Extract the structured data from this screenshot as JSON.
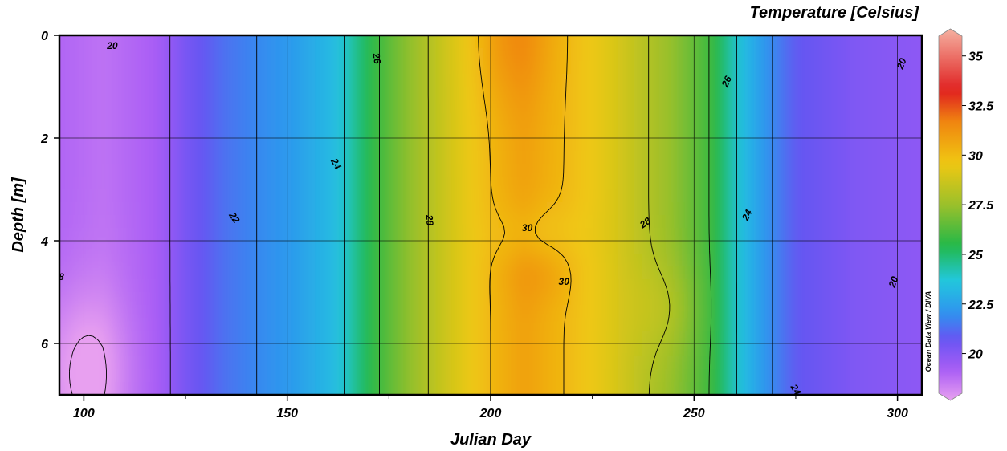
{
  "chart_data": {
    "type": "heatmap",
    "title": "",
    "xlabel": "Julian Day",
    "ylabel": "Depth [m]",
    "xlim": [
      94,
      306
    ],
    "ylim": [
      0,
      7
    ],
    "y_inverted": true,
    "x_ticks": [
      100,
      150,
      200,
      250,
      300
    ],
    "y_ticks": [
      0,
      2,
      4,
      6
    ],
    "grid": true,
    "colorbar": {
      "title": "Temperature [Celsius]",
      "range": [
        18,
        36
      ],
      "ticks": [
        20,
        22.5,
        25,
        27.5,
        30,
        32.5,
        35
      ],
      "tick_labels": [
        "20",
        "22.5",
        "25",
        "27.5",
        "30",
        "32.5",
        "35"
      ],
      "colors": [
        {
          "value": 18,
          "color": "#e8a0f0"
        },
        {
          "value": 19.5,
          "color": "#a85cf5"
        },
        {
          "value": 21,
          "color": "#6655f2"
        },
        {
          "value": 22.2,
          "color": "#2f92ef"
        },
        {
          "value": 23.8,
          "color": "#22c7de"
        },
        {
          "value": 25.5,
          "color": "#22b848"
        },
        {
          "value": 27.5,
          "color": "#9cc02a"
        },
        {
          "value": 29.5,
          "color": "#f0c812"
        },
        {
          "value": 31.5,
          "color": "#f08510"
        },
        {
          "value": 33,
          "color": "#e02020"
        },
        {
          "value": 36,
          "color": "#f5b0a0"
        }
      ]
    },
    "contour_labels": [
      {
        "text": "20",
        "x": 107,
        "y": 0.2,
        "angle": 0
      },
      {
        "text": "20",
        "x": 301,
        "y": 0.55,
        "angle": -70
      },
      {
        "text": "20",
        "x": 299,
        "y": 4.8,
        "angle": -70
      },
      {
        "text": "8",
        "x": 94.5,
        "y": 4.7,
        "angle": 0
      },
      {
        "text": "22",
        "x": 137,
        "y": 3.55,
        "angle": 55
      },
      {
        "text": "24",
        "x": 162,
        "y": 2.5,
        "angle": 60
      },
      {
        "text": "24",
        "x": 263,
        "y": 3.5,
        "angle": -65
      },
      {
        "text": "24",
        "x": 275,
        "y": 6.9,
        "angle": 60
      },
      {
        "text": "26",
        "x": 172,
        "y": 0.45,
        "angle": 80
      },
      {
        "text": "26",
        "x": 258,
        "y": 0.9,
        "angle": -65
      },
      {
        "text": "28",
        "x": 185,
        "y": 3.6,
        "angle": 85
      },
      {
        "text": "28",
        "x": 238,
        "y": 3.65,
        "angle": -35
      },
      {
        "text": "30",
        "x": 209,
        "y": 3.75,
        "angle": 0
      },
      {
        "text": "30",
        "x": 218,
        "y": 4.8,
        "angle": 0
      }
    ],
    "watermark": "Ocean Data View / DIVA"
  }
}
